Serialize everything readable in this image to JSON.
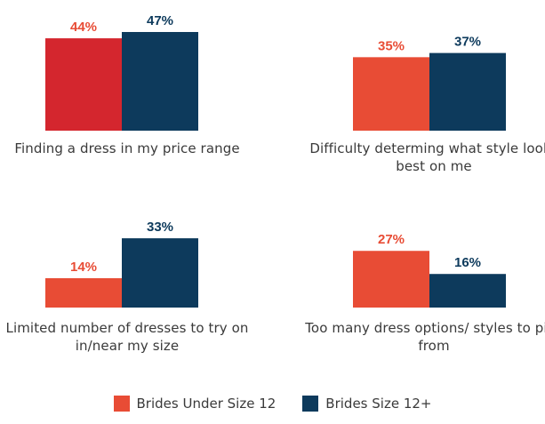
{
  "chart_data": {
    "type": "bar",
    "panels": [
      {
        "category": "Finding a dress in my price range",
        "values": [
          44,
          47
        ],
        "labels": [
          "44%",
          "47%"
        ],
        "under_color": "#d4262e"
      },
      {
        "category": "Difficulty determing what style looks best on me",
        "values": [
          35,
          37
        ],
        "labels": [
          "35%",
          "37%"
        ],
        "under_color": "#e84c35"
      },
      {
        "category": "Limited number of dresses to try on in/near my size",
        "values": [
          14,
          33
        ],
        "labels": [
          "14%",
          "33%"
        ],
        "under_color": "#e84c35"
      },
      {
        "category": "Too many dress options/ styles to pick from",
        "values": [
          27,
          16
        ],
        "labels": [
          "27%",
          "16%"
        ],
        "under_color": "#e84c35"
      }
    ],
    "series": [
      {
        "name": "Brides Under Size 12",
        "color": "#e84c35"
      },
      {
        "name": "Brides Size 12+",
        "color": "#0d3a5c"
      }
    ],
    "ylim": [
      0,
      47
    ],
    "label_colors": {
      "under": "#e84c35",
      "plus": "#0d3a5c"
    }
  }
}
